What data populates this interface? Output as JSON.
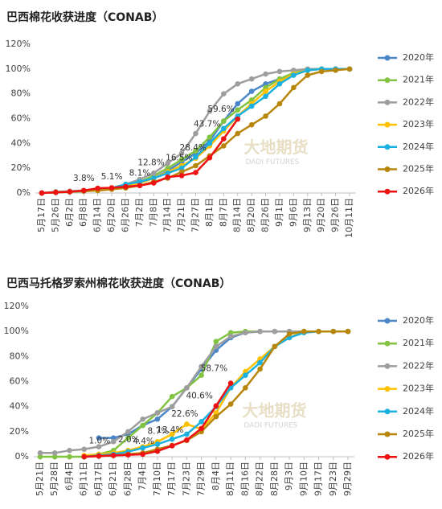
{
  "chart_data": [
    {
      "type": "line",
      "title": "巴西棉花收获进度（CONAB）",
      "watermark": "大地期货",
      "watermark_sub": "DADI FUTURES",
      "categories": [
        "5月17日",
        "5月26日",
        "6月2日",
        "6月8日",
        "6月14日",
        "6月20日",
        "6月26日",
        "7月2日",
        "7月8日",
        "7月14日",
        "7月21日",
        "7月27日",
        "8月1日",
        "8月7日",
        "8月14日",
        "8月20日",
        "8月26日",
        "9月1日",
        "9月6日",
        "9月13日",
        "9月20日",
        "9月26日",
        "10月11日"
      ],
      "ylim": [
        0,
        120
      ],
      "yticks": [
        {
          "value": 0,
          "label": "0%"
        },
        {
          "value": 20,
          "label": "20%"
        },
        {
          "value": 40,
          "label": "40%"
        },
        {
          "value": 60,
          "label": "60%"
        },
        {
          "value": 80,
          "label": "80%"
        },
        {
          "value": 100,
          "label": "100%"
        },
        {
          "value": 120,
          "label": "120%"
        }
      ],
      "grid": false,
      "legend": "right",
      "series": [
        {
          "name": "2020年",
          "color": "#4a86c8",
          "values": [
            0,
            0.5,
            1,
            2,
            3,
            4,
            6,
            8,
            12,
            18,
            25,
            32,
            42,
            58,
            72,
            82,
            88,
            92,
            96,
            99,
            100,
            100,
            100
          ]
        },
        {
          "name": "2021年",
          "color": "#82c341",
          "values": [
            0,
            0.5,
            1,
            2,
            3,
            4,
            6,
            9,
            14,
            20,
            27,
            34,
            45,
            58,
            67,
            75,
            85,
            92,
            97,
            99,
            100,
            100,
            100
          ]
        },
        {
          "name": "2022年",
          "color": "#9e9e9e",
          "values": [
            0,
            1,
            1.5,
            2,
            3,
            4,
            7,
            11,
            16,
            24,
            32,
            48,
            66,
            80,
            88,
            92,
            96,
            98,
            99,
            100,
            100,
            100,
            100
          ]
        },
        {
          "name": "2023年",
          "color": "#ffc000",
          "values": [
            0,
            0.5,
            1,
            1.5,
            2,
            3,
            5,
            8,
            12,
            17,
            22,
            28,
            38,
            50,
            62,
            72,
            82,
            90,
            96,
            99,
            100,
            100,
            100
          ]
        },
        {
          "name": "2024年",
          "color": "#1ab0e0",
          "values": [
            0,
            0.5,
            1,
            1.5,
            2.5,
            4,
            7,
            9,
            12,
            16,
            20,
            29,
            40,
            52,
            62,
            70,
            78,
            88,
            95,
            99,
            100,
            100,
            100
          ]
        },
        {
          "name": "2025年",
          "color": "#b8860b",
          "values": [
            0,
            0.5,
            1,
            1.5,
            2,
            3,
            4,
            6,
            9,
            12,
            17,
            22,
            30,
            38,
            48,
            55,
            62,
            72,
            85,
            95,
            98,
            99,
            100
          ]
        },
        {
          "name": "2026年",
          "color": "#ee1111",
          "values": [
            0,
            0.5,
            1,
            2,
            3.8,
            4.2,
            5.1,
            6,
            8.1,
            12.8,
            14,
            16.5,
            28.4,
            43.7,
            59.6,
            null,
            null,
            null,
            null,
            null,
            null,
            null,
            null
          ],
          "value_labels": [
            null,
            null,
            null,
            null,
            "3.8%",
            null,
            "5.1%",
            null,
            "8.1%",
            "12.8%",
            null,
            "16.5%",
            "28.4%",
            "43.7%",
            "59.6%",
            null,
            null,
            null,
            null,
            null,
            null,
            null,
            null
          ]
        }
      ]
    },
    {
      "type": "line",
      "title": "巴西马托格罗索州棉花收获进度（CONAB）",
      "watermark": "大地期货",
      "watermark_sub": "DADI FUTURES",
      "categories": [
        "5月21日",
        "5月28日",
        "6月4日",
        "6月11日",
        "6月17日",
        "6月21日",
        "6月28日",
        "7月4日",
        "7月10日",
        "7月17日",
        "7月23日",
        "7月29日",
        "8月4日",
        "8月11日",
        "8月16日",
        "8月22日",
        "8月28日",
        "9月3日",
        "9月10日",
        "9月17日",
        "9月23日",
        "9月29日"
      ],
      "ylim": [
        0,
        120
      ],
      "yticks": [
        {
          "value": 0,
          "label": "0%"
        },
        {
          "value": 20,
          "label": "20%"
        },
        {
          "value": 40,
          "label": "40%"
        },
        {
          "value": 60,
          "label": "60%"
        },
        {
          "value": 80,
          "label": "80%"
        },
        {
          "value": 100,
          "label": "100%"
        },
        {
          "value": 120,
          "label": "120%"
        }
      ],
      "grid": false,
      "legend": "right",
      "series": [
        {
          "name": "2020年",
          "color": "#4a86c8",
          "values": [
            null,
            null,
            null,
            null,
            15,
            15,
            18,
            25,
            30,
            40,
            55,
            70,
            85,
            95,
            99,
            100,
            100,
            100,
            100,
            100,
            100,
            100
          ]
        },
        {
          "name": "2021年",
          "color": "#82c341",
          "values": [
            0,
            0,
            0,
            0,
            2,
            5,
            15,
            25,
            35,
            48,
            55,
            65,
            92,
            99,
            100,
            100,
            100,
            100,
            100,
            100,
            100,
            100
          ]
        },
        {
          "name": "2022年",
          "color": "#9e9e9e",
          "values": [
            3,
            3,
            5,
            6,
            8,
            12,
            20,
            30,
            35,
            40,
            55,
            72,
            88,
            96,
            99,
            100,
            100,
            100,
            100,
            100,
            100,
            100
          ]
        },
        {
          "name": "2023年",
          "color": "#ffc000",
          "values": [
            null,
            null,
            null,
            1,
            2,
            3,
            5,
            8,
            12,
            18,
            26,
            22,
            35,
            55,
            68,
            78,
            88,
            95,
            100,
            100,
            100,
            100
          ]
        },
        {
          "name": "2024年",
          "color": "#1ab0e0",
          "values": [
            null,
            null,
            null,
            0,
            1,
            2,
            4,
            7,
            10,
            14,
            18,
            28,
            40,
            55,
            65,
            75,
            88,
            95,
            99,
            100,
            100,
            100
          ]
        },
        {
          "name": "2025年",
          "color": "#b8860b",
          "values": [
            null,
            null,
            null,
            0,
            0.5,
            1,
            2,
            3,
            6,
            9,
            13,
            20,
            32,
            42,
            55,
            70,
            88,
            98,
            100,
            100,
            100,
            100
          ]
        },
        {
          "name": "2026年",
          "color": "#ee1111",
          "values": [
            null,
            null,
            null,
            0,
            0.5,
            1.0,
            1.5,
            2.0,
            4.4,
            8.7,
            13.4,
            22.6,
            40.6,
            58.7,
            null,
            null,
            null,
            null,
            null,
            null,
            null,
            null
          ],
          "value_labels": [
            null,
            null,
            null,
            null,
            null,
            "1.0%",
            null,
            "2.0%",
            "4.4%",
            "8.7%",
            "13.4%",
            "22.6%",
            "40.6%",
            "58.7%",
            null,
            null,
            null,
            null,
            null,
            null,
            null,
            null
          ]
        }
      ]
    }
  ]
}
